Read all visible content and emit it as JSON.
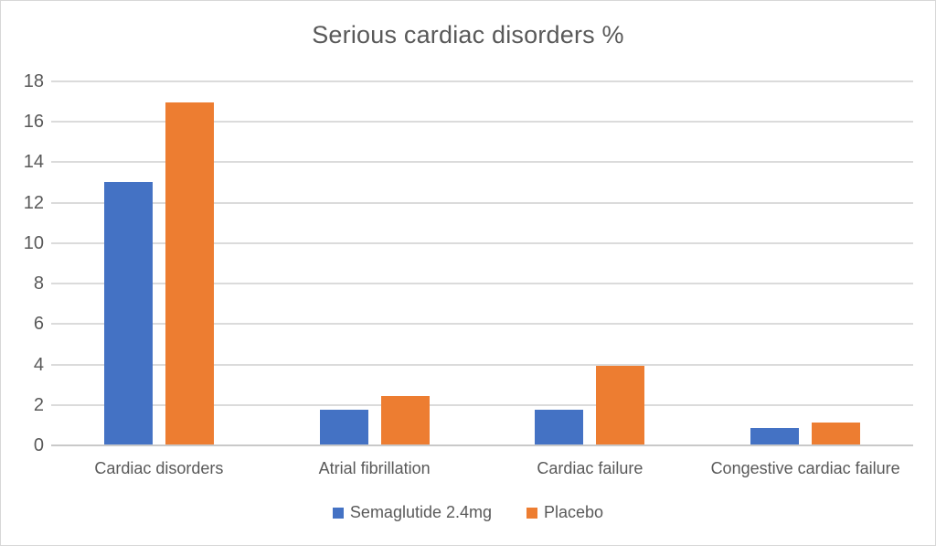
{
  "chart_data": {
    "type": "bar",
    "title": "Serious cardiac disorders %",
    "categories": [
      "Cardiac disorders",
      "Atrial fibrillation",
      "Cardiac failure",
      "Congestive cardiac failure"
    ],
    "series": [
      {
        "name": "Semaglutide 2.4mg",
        "color": "#4472C4",
        "values": [
          13,
          1.7,
          1.7,
          0.8
        ]
      },
      {
        "name": "Placebo",
        "color": "#ED7D31",
        "values": [
          16.9,
          2.4,
          3.9,
          1.1
        ]
      }
    ],
    "xlabel": "",
    "ylabel": "",
    "ylim": [
      0,
      18
    ],
    "yticks": [
      0,
      2,
      4,
      6,
      8,
      10,
      12,
      14,
      16,
      18
    ],
    "grid": "horizontal",
    "legend_position": "bottom-center",
    "colors": {
      "text": "#595959",
      "gridline": "#dbdbdb",
      "background": "#ffffff",
      "border": "#d7d7d7"
    }
  }
}
